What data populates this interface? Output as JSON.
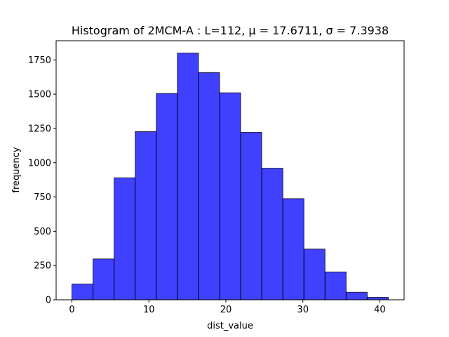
{
  "chart_data": {
    "type": "bar",
    "title": "Histogram of 2MCM-A : L=112, μ = 17.6711, σ = 7.3938",
    "xlabel": "dist_value",
    "ylabel": "frequency",
    "bin_edges": [
      0.0,
      2.74,
      5.48,
      8.22,
      10.96,
      13.7,
      16.44,
      19.18,
      21.92,
      24.66,
      27.4,
      30.14,
      32.88,
      35.62,
      38.36,
      41.1
    ],
    "values": [
      115,
      298,
      890,
      1227,
      1505,
      1800,
      1658,
      1510,
      1222,
      960,
      738,
      370,
      203,
      55,
      18
    ],
    "xlim": [
      -2.05,
      43.15
    ],
    "ylim": [
      0,
      1890
    ],
    "xticks": [
      0,
      10,
      20,
      30,
      40
    ],
    "xtick_labels": [
      "0",
      "10",
      "20",
      "30",
      "40"
    ],
    "yticks": [
      0,
      250,
      500,
      750,
      1000,
      1250,
      1500,
      1750
    ],
    "ytick_labels": [
      "0",
      "250",
      "500",
      "750",
      "1000",
      "1250",
      "1500",
      "1750"
    ],
    "grid": false,
    "bar_color": "#0000ff",
    "bar_opacity": 0.75,
    "edge_color": "#000000"
  }
}
